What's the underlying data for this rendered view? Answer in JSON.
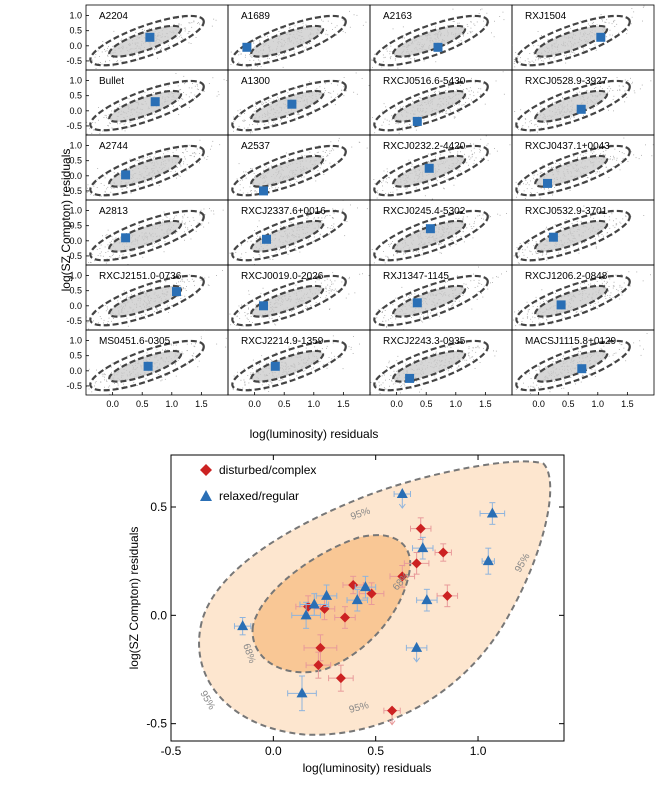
{
  "chart_data": [
    {
      "type": "scatter",
      "xlabel": "log(luminosity) residuals",
      "ylabel": "log(SZ Compton) residuals",
      "xticks": [
        "0.0",
        "0.5",
        "1.0",
        "1.5"
      ],
      "yticks": [
        "-0.5",
        "0.0",
        "0.5",
        "1.0"
      ],
      "xlim": [
        -0.45,
        1.95
      ],
      "ylim": [
        -0.8,
        1.35
      ],
      "grid": false,
      "panels": [
        {
          "name": "A2204",
          "x": 0.63,
          "y": 0.28
        },
        {
          "name": "A1689",
          "x": -0.13,
          "y": -0.05
        },
        {
          "name": "A2163",
          "x": 0.7,
          "y": -0.05
        },
        {
          "name": "RXJ1504",
          "x": 1.05,
          "y": 0.28
        },
        {
          "name": "Bullet",
          "x": 0.72,
          "y": 0.3
        },
        {
          "name": "A1300",
          "x": 0.63,
          "y": 0.22
        },
        {
          "name": "RXCJ0516.6-5430",
          "x": 0.35,
          "y": -0.35
        },
        {
          "name": "RXCJ0528.9-3927",
          "x": 0.72,
          "y": 0.05
        },
        {
          "name": "A2744",
          "x": 0.22,
          "y": 0.03
        },
        {
          "name": "A2537",
          "x": 0.15,
          "y": -0.5
        },
        {
          "name": "RXCJ0232.2-4420",
          "x": 0.55,
          "y": 0.25
        },
        {
          "name": "RXCJ0437.1+0043",
          "x": 0.15,
          "y": -0.25
        },
        {
          "name": "A2813",
          "x": 0.22,
          "y": 0.1
        },
        {
          "name": "RXCJ2337.6+0016",
          "x": 0.2,
          "y": 0.05
        },
        {
          "name": "RXCJ0245.4-5302",
          "x": 0.57,
          "y": 0.4
        },
        {
          "name": "RXCJ0532.9-3701",
          "x": 0.25,
          "y": 0.12
        },
        {
          "name": "RXCJ2151.0-0736",
          "x": 1.08,
          "y": 0.47
        },
        {
          "name": "RXCJ0019.0-2026",
          "x": 0.15,
          "y": 0.0
        },
        {
          "name": "RXJ1347-1145",
          "x": 0.35,
          "y": 0.1
        },
        {
          "name": "RXCJ1206.2-0848",
          "x": 0.38,
          "y": 0.03
        },
        {
          "name": "MS0451.6-0305",
          "x": 0.6,
          "y": 0.15
        },
        {
          "name": "RXCJ2214.9-1359",
          "x": 0.35,
          "y": 0.15
        },
        {
          "name": "RXCJ2243.3-0935",
          "x": 0.22,
          "y": -0.25
        },
        {
          "name": "MACSJ1115.8+0129",
          "x": 0.73,
          "y": 0.07
        }
      ]
    },
    {
      "type": "scatter",
      "xlabel": "log(luminosity) residuals",
      "ylabel": "log(SZ Compton) residuals",
      "xticks": [
        "-0.5",
        "0.0",
        "0.5",
        "1.0"
      ],
      "yticks": [
        "-0.5",
        "0.0",
        "0.5"
      ],
      "xlim": [
        -0.5,
        1.42
      ],
      "ylim": [
        -0.58,
        0.74
      ],
      "legend": "top-left",
      "contour_labels": [
        "95%",
        "68%"
      ],
      "series": [
        {
          "name": "disturbed/complex",
          "color": "#cc2222",
          "marker": "diamond",
          "points": [
            {
              "x": 0.72,
              "y": 0.4,
              "xerr": 0.05,
              "yerr": 0.05
            },
            {
              "x": 0.83,
              "y": 0.29,
              "xerr": 0.04,
              "yerr": 0.04
            },
            {
              "x": 0.7,
              "y": 0.24,
              "xerr": 0.06,
              "yerr": 0.05
            },
            {
              "x": 0.63,
              "y": 0.18,
              "xerr": 0.06,
              "yerr": 0.05
            },
            {
              "x": 0.85,
              "y": 0.09,
              "xerr": 0.05,
              "yerr": 0.05
            },
            {
              "x": 0.39,
              "y": 0.14,
              "xerr": 0.05,
              "yerr": 0.04
            },
            {
              "x": 0.48,
              "y": 0.1,
              "xerr": 0.06,
              "yerr": 0.05
            },
            {
              "x": 0.35,
              "y": -0.01,
              "xerr": 0.05,
              "yerr": 0.05
            },
            {
              "x": 0.17,
              "y": 0.04,
              "xerr": 0.06,
              "yerr": 0.05
            },
            {
              "x": 0.25,
              "y": 0.03,
              "xerr": 0.05,
              "yerr": 0.05
            },
            {
              "x": 0.23,
              "y": -0.15,
              "xerr": 0.08,
              "yerr": 0.06
            },
            {
              "x": 0.22,
              "y": -0.23,
              "xerr": 0.06,
              "yerr": 0.06
            },
            {
              "x": 0.33,
              "y": -0.29,
              "xerr": 0.06,
              "yerr": 0.06
            },
            {
              "x": 0.58,
              "y": -0.44,
              "xerr": 0.04,
              "yerr": 0.0,
              "upper_limit": true
            }
          ]
        },
        {
          "name": "relaxed/regular",
          "color": "#2a6fb5",
          "marker": "triangle",
          "points": [
            {
              "x": 0.63,
              "y": 0.56,
              "xerr": 0.04,
              "yerr": 0.0,
              "upper_limit": true
            },
            {
              "x": 1.07,
              "y": 0.47,
              "xerr": 0.06,
              "yerr": 0.05
            },
            {
              "x": 0.73,
              "y": 0.31,
              "xerr": 0.05,
              "yerr": 0.05
            },
            {
              "x": 1.05,
              "y": 0.25,
              "xerr": 0.03,
              "yerr": 0.06
            },
            {
              "x": 0.75,
              "y": 0.07,
              "xerr": 0.05,
              "yerr": 0.05
            },
            {
              "x": 0.45,
              "y": 0.13,
              "xerr": 0.05,
              "yerr": 0.05
            },
            {
              "x": 0.41,
              "y": 0.07,
              "xerr": 0.05,
              "yerr": 0.05
            },
            {
              "x": 0.26,
              "y": 0.09,
              "xerr": 0.05,
              "yerr": 0.05
            },
            {
              "x": 0.2,
              "y": 0.05,
              "xerr": 0.07,
              "yerr": 0.05
            },
            {
              "x": 0.16,
              "y": 0.0,
              "xerr": 0.07,
              "yerr": 0.06
            },
            {
              "x": -0.15,
              "y": -0.05,
              "xerr": 0.04,
              "yerr": 0.04
            },
            {
              "x": 0.14,
              "y": -0.36,
              "xerr": 0.07,
              "yerr": 0.08
            },
            {
              "x": 0.7,
              "y": -0.15,
              "xerr": 0.05,
              "yerr": 0.0,
              "upper_limit": true
            }
          ]
        }
      ]
    }
  ],
  "colors": {
    "scatter_points": "#aaaaaa",
    "contour_fill_panel": "#c9c9c9",
    "marker_panel": "#2a6fb5",
    "contour95_fill": "#fde6cf",
    "contour68_fill": "#f9c795",
    "contour_line": "#777777"
  }
}
